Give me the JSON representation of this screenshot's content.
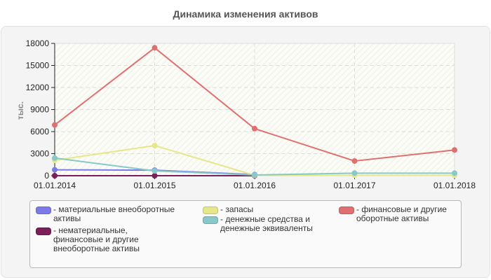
{
  "header": {
    "title": "Динамика изменения активов"
  },
  "chart_data": {
    "type": "line",
    "title": "Динамика изменения активов",
    "xlabel": "",
    "ylabel": "тыс.",
    "ylim": [
      0,
      18000
    ],
    "yticks": [
      0,
      3000,
      6000,
      9000,
      12000,
      15000,
      18000
    ],
    "categories": [
      "01.01.2014",
      "01.01.2015",
      "01.01.2016",
      "01.01.2017",
      "01.01.2018"
    ],
    "grid": true,
    "legend_position": "bottom",
    "series": [
      {
        "name": "материальные внеоборотные активы",
        "color": "#7b7be8",
        "values": [
          800,
          750,
          150,
          null,
          null
        ]
      },
      {
        "name": "нематериальные, финансовые и другие внеоборотные активы",
        "color": "#7a1f5a",
        "values": [
          0,
          0,
          0,
          null,
          null
        ]
      },
      {
        "name": "запасы",
        "color": "#e6e68a",
        "values": [
          2100,
          4100,
          50,
          50,
          50
        ]
      },
      {
        "name": "денежные средства и денежные эквиваленты",
        "color": "#88c8c8",
        "values": [
          2400,
          650,
          100,
          350,
          350
        ]
      },
      {
        "name": "финансовые и другие оборотные активы",
        "color": "#e07070",
        "values": [
          6900,
          17400,
          6400,
          2000,
          3500
        ]
      }
    ]
  },
  "legend": {
    "items": [
      {
        "label": "- материальные внеоборотные\nактивы",
        "color": "#7b7be8"
      },
      {
        "label": "- нематериальные,\nфинансовые и другие\nвнеоборотные активы",
        "color": "#7a1f5a"
      },
      {
        "label": "- запасы",
        "color": "#e6e68a"
      },
      {
        "label": "- денежные средства и\nденежные эквиваленты",
        "color": "#88c8c8"
      },
      {
        "label": "- финансовые и другие\nоборотные активы",
        "color": "#e07070"
      }
    ]
  }
}
